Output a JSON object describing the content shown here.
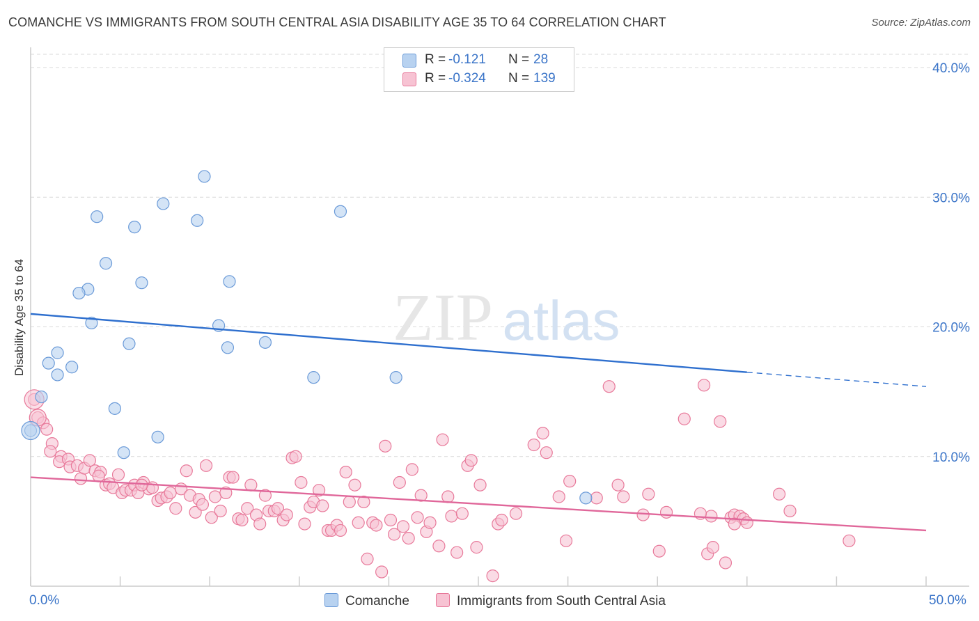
{
  "title": "COMANCHE VS IMMIGRANTS FROM SOUTH CENTRAL ASIA DISABILITY AGE 35 TO 64 CORRELATION CHART",
  "source": "Source: ZipAtlas.com",
  "watermark": {
    "zip": "ZIP",
    "atlas": "atlas"
  },
  "colors": {
    "blue_fill": "#b8d2f0",
    "blue_stroke": "#6a9ad8",
    "blue_line": "#2e6fce",
    "pink_fill": "#f7c3d3",
    "pink_stroke": "#e8799a",
    "pink_line": "#e0679a",
    "axis_text": "#3a74c8",
    "grid": "#d9d9d9"
  },
  "legend_top": {
    "rows": [
      {
        "r_label": "R =",
        "r_value": "-0.121",
        "n_label": "N =",
        "n_value": "28"
      },
      {
        "r_label": "R =",
        "r_value": "-0.324",
        "n_label": "N =",
        "n_value": "139"
      }
    ]
  },
  "legend_bottom": {
    "series1": "Comanche",
    "series2": "Immigrants from South Central Asia"
  },
  "x_tick_labels": {
    "left": "0.0%",
    "right": "50.0%"
  },
  "chart_data": {
    "type": "scatter",
    "title": "COMANCHE VS IMMIGRANTS FROM SOUTH CENTRAL ASIA DISABILITY AGE 35 TO 64 CORRELATION CHART",
    "xlabel": "",
    "ylabel": "Disability Age 35 to 64",
    "xlim": [
      0,
      50
    ],
    "ylim": [
      0,
      40
    ],
    "y_ticks": [
      {
        "value": 10,
        "label": "10.0%"
      },
      {
        "value": 20,
        "label": "20.0%"
      },
      {
        "value": 30,
        "label": "30.0%"
      },
      {
        "value": 40,
        "label": "40.0%"
      }
    ],
    "x_ticks": [
      0,
      5,
      10,
      15,
      20,
      25,
      30,
      35,
      40,
      45,
      50
    ],
    "grid": true,
    "legend_position": "top-center",
    "series": [
      {
        "name": "Comanche",
        "color": "#6a9ad8",
        "points": [
          [
            9.7,
            31.6
          ],
          [
            3.7,
            28.5
          ],
          [
            5.8,
            27.7
          ],
          [
            7.4,
            29.5
          ],
          [
            9.3,
            28.2
          ],
          [
            17.3,
            28.9
          ],
          [
            4.2,
            24.9
          ],
          [
            6.2,
            23.4
          ],
          [
            11.1,
            23.5
          ],
          [
            3.2,
            22.9
          ],
          [
            2.7,
            22.6
          ],
          [
            3.4,
            20.3
          ],
          [
            10.5,
            20.1
          ],
          [
            5.5,
            18.7
          ],
          [
            11.0,
            18.4
          ],
          [
            13.1,
            18.8
          ],
          [
            1.5,
            18.0
          ],
          [
            1.0,
            17.2
          ],
          [
            2.3,
            16.9
          ],
          [
            1.5,
            16.3
          ],
          [
            15.8,
            16.1
          ],
          [
            20.4,
            16.1
          ],
          [
            0.6,
            14.6
          ],
          [
            4.7,
            13.7
          ],
          [
            7.1,
            11.5
          ],
          [
            5.2,
            10.3
          ],
          [
            0.0,
            12.0
          ],
          [
            31.0,
            6.8
          ]
        ],
        "trend": {
          "x0": 0,
          "y0": 21.0,
          "x1": 40,
          "y1": 16.5,
          "dash_to_x": 50,
          "dash_to_y": 15.4
        }
      },
      {
        "name": "Immigrants from South Central Asia",
        "color": "#e8799a",
        "points": [
          [
            0.2,
            14.4
          ],
          [
            0.4,
            13.0
          ],
          [
            0.7,
            12.6
          ],
          [
            0.9,
            12.1
          ],
          [
            1.2,
            11.0
          ],
          [
            1.1,
            10.4
          ],
          [
            1.7,
            10.0
          ],
          [
            1.6,
            9.6
          ],
          [
            2.1,
            9.8
          ],
          [
            2.2,
            9.2
          ],
          [
            2.6,
            9.3
          ],
          [
            2.8,
            8.3
          ],
          [
            3.0,
            9.1
          ],
          [
            3.3,
            9.7
          ],
          [
            3.6,
            8.9
          ],
          [
            3.9,
            8.8
          ],
          [
            4.2,
            7.8
          ],
          [
            4.4,
            7.9
          ],
          [
            4.6,
            7.6
          ],
          [
            4.9,
            8.6
          ],
          [
            5.1,
            7.2
          ],
          [
            5.3,
            7.4
          ],
          [
            5.6,
            7.4
          ],
          [
            5.8,
            7.8
          ],
          [
            6.0,
            7.2
          ],
          [
            6.3,
            8.0
          ],
          [
            6.6,
            7.5
          ],
          [
            6.8,
            7.6
          ],
          [
            7.1,
            6.6
          ],
          [
            7.3,
            6.8
          ],
          [
            7.6,
            6.9
          ],
          [
            7.8,
            7.2
          ],
          [
            8.1,
            6.0
          ],
          [
            8.4,
            7.5
          ],
          [
            8.7,
            8.9
          ],
          [
            8.9,
            7.0
          ],
          [
            9.2,
            5.7
          ],
          [
            9.4,
            6.7
          ],
          [
            9.6,
            6.3
          ],
          [
            9.8,
            9.3
          ],
          [
            10.1,
            5.3
          ],
          [
            10.3,
            6.9
          ],
          [
            10.6,
            5.8
          ],
          [
            10.9,
            7.2
          ],
          [
            11.1,
            8.4
          ],
          [
            11.3,
            8.4
          ],
          [
            11.6,
            5.2
          ],
          [
            11.8,
            5.1
          ],
          [
            12.1,
            6.0
          ],
          [
            12.3,
            7.8
          ],
          [
            12.6,
            5.5
          ],
          [
            12.8,
            4.8
          ],
          [
            13.1,
            7.0
          ],
          [
            13.3,
            5.8
          ],
          [
            13.6,
            5.8
          ],
          [
            13.8,
            6.0
          ],
          [
            14.1,
            5.1
          ],
          [
            14.3,
            5.5
          ],
          [
            14.6,
            9.9
          ],
          [
            14.8,
            10.0
          ],
          [
            15.1,
            8.0
          ],
          [
            15.3,
            4.8
          ],
          [
            15.6,
            6.1
          ],
          [
            15.8,
            6.5
          ],
          [
            16.1,
            7.4
          ],
          [
            16.3,
            6.2
          ],
          [
            16.6,
            4.3
          ],
          [
            16.8,
            4.3
          ],
          [
            17.1,
            4.7
          ],
          [
            17.3,
            4.3
          ],
          [
            17.6,
            8.8
          ],
          [
            17.8,
            6.5
          ],
          [
            18.1,
            7.8
          ],
          [
            18.3,
            4.9
          ],
          [
            18.6,
            6.5
          ],
          [
            18.8,
            2.1
          ],
          [
            19.1,
            4.9
          ],
          [
            19.3,
            4.7
          ],
          [
            19.6,
            1.1
          ],
          [
            19.8,
            10.8
          ],
          [
            20.1,
            5.1
          ],
          [
            20.3,
            4.0
          ],
          [
            20.6,
            8.0
          ],
          [
            20.8,
            4.6
          ],
          [
            21.1,
            3.7
          ],
          [
            21.3,
            9.0
          ],
          [
            21.6,
            5.3
          ],
          [
            21.8,
            7.0
          ],
          [
            22.1,
            4.2
          ],
          [
            22.3,
            4.9
          ],
          [
            22.8,
            3.1
          ],
          [
            23.0,
            11.3
          ],
          [
            23.3,
            6.9
          ],
          [
            23.5,
            5.4
          ],
          [
            23.8,
            2.6
          ],
          [
            24.1,
            5.6
          ],
          [
            24.4,
            9.3
          ],
          [
            24.6,
            9.7
          ],
          [
            24.9,
            3.0
          ],
          [
            25.1,
            7.8
          ],
          [
            25.8,
            0.8
          ],
          [
            26.1,
            4.8
          ],
          [
            26.3,
            5.1
          ],
          [
            27.1,
            5.6
          ],
          [
            28.1,
            10.9
          ],
          [
            28.6,
            11.8
          ],
          [
            28.8,
            10.3
          ],
          [
            29.5,
            6.9
          ],
          [
            29.9,
            3.5
          ],
          [
            30.1,
            8.1
          ],
          [
            31.6,
            6.8
          ],
          [
            32.3,
            15.4
          ],
          [
            32.8,
            7.8
          ],
          [
            33.1,
            6.9
          ],
          [
            34.5,
            7.1
          ],
          [
            35.1,
            2.7
          ],
          [
            35.5,
            5.7
          ],
          [
            36.5,
            12.9
          ],
          [
            37.6,
            15.5
          ],
          [
            37.8,
            2.5
          ],
          [
            38.1,
            3.0
          ],
          [
            38.5,
            12.7
          ],
          [
            38.8,
            1.8
          ],
          [
            39.1,
            5.3
          ],
          [
            39.3,
            5.5
          ],
          [
            39.6,
            5.4
          ],
          [
            39.8,
            5.2
          ],
          [
            40.0,
            4.9
          ],
          [
            38.0,
            5.4
          ],
          [
            37.4,
            5.6
          ],
          [
            39.3,
            4.8
          ],
          [
            41.8,
            7.1
          ],
          [
            42.4,
            5.8
          ],
          [
            45.7,
            3.5
          ],
          [
            34.2,
            5.5
          ],
          [
            6.2,
            7.8
          ],
          [
            3.8,
            8.5
          ]
        ],
        "trend": {
          "x0": 0,
          "y0": 8.4,
          "x1": 50,
          "y1": 4.3
        }
      }
    ]
  }
}
